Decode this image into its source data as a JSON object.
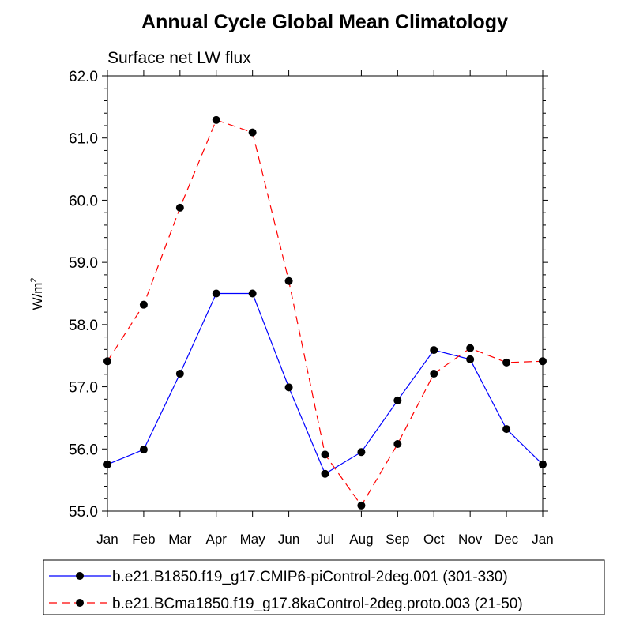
{
  "chart_data": {
    "type": "line",
    "title": "Annual Cycle Global Mean Climatology",
    "subtitle": "Surface net LW flux",
    "xlabel": "",
    "ylabel": "W/m",
    "ylabel_superscript": "2",
    "categories": [
      "Jan",
      "Feb",
      "Mar",
      "Apr",
      "May",
      "Jun",
      "Jul",
      "Aug",
      "Sep",
      "Oct",
      "Nov",
      "Dec",
      "Jan"
    ],
    "ylim": [
      55.0,
      62.0
    ],
    "yticks": [
      "55.0",
      "56.0",
      "57.0",
      "58.0",
      "59.0",
      "60.0",
      "61.0",
      "62.0"
    ],
    "grid": false,
    "legend_position": "bottom",
    "series": [
      {
        "name": "b.e21.B1850.f19_g17.CMIP6-piControl-2deg.001 (301-330)",
        "color": "#0000ff",
        "dash": "solid",
        "values": [
          55.75,
          55.99,
          57.21,
          58.5,
          58.5,
          56.99,
          55.6,
          55.95,
          56.78,
          57.59,
          57.44,
          56.32,
          55.75
        ]
      },
      {
        "name": "b.e21.BCma1850.f19_g17.8kaControl-2deg.proto.003 (21-50)",
        "color": "#ff0000",
        "dash": "dashed",
        "values": [
          57.41,
          58.32,
          59.88,
          61.29,
          61.09,
          58.7,
          55.91,
          55.09,
          56.08,
          57.21,
          57.62,
          57.39,
          57.41
        ]
      }
    ]
  }
}
